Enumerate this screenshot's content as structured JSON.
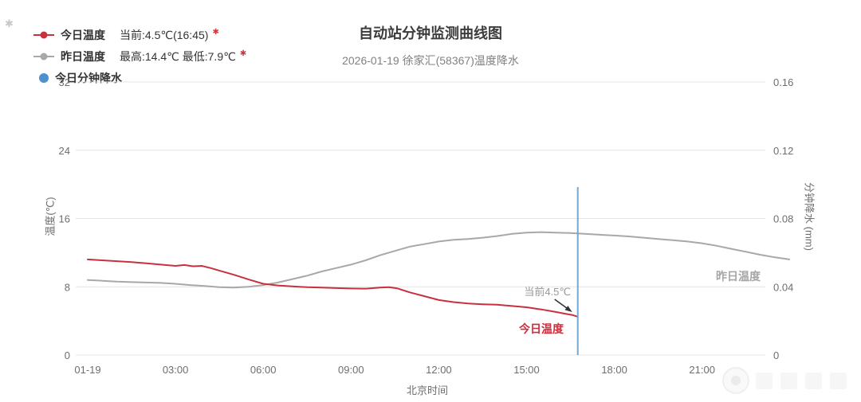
{
  "header": {
    "title": "自动站分钟监测曲线图",
    "subtitle": "2026-01-19 徐家汇(58367)温度降水"
  },
  "legend": {
    "items": [
      {
        "label": "今日温度",
        "detail": "当前:4.5℃(16:45)",
        "marker_color": "#c9303e",
        "footnote": "✱"
      },
      {
        "label": "昨日温度",
        "detail": "最高:14.4℃ 最低:7.9℃",
        "marker_color": "#a8a8a8",
        "footnote": "✱"
      },
      {
        "label": "今日分钟降水",
        "detail": "",
        "marker_color": "#4d8fd1",
        "footnote": ""
      }
    ]
  },
  "chart_data": {
    "type": "line",
    "title": "自动站分钟监测曲线图",
    "subtitle": "2026-01-19 徐家汇(58367)温度降水",
    "x_axis": {
      "name": "北京时间",
      "tick_labels": [
        "01-19",
        "03:00",
        "06:00",
        "09:00",
        "12:00",
        "15:00",
        "18:00",
        "21:00"
      ],
      "tick_hours": [
        0,
        3,
        6,
        9,
        12,
        15,
        18,
        21
      ],
      "range_hours": [
        0,
        24
      ]
    },
    "y_axis_left": {
      "name": "温度(℃)",
      "ticks": [
        0,
        8,
        16,
        24,
        32
      ],
      "range": [
        0,
        32
      ]
    },
    "y_axis_right": {
      "name": "分钟降水 (mm)",
      "ticks": [
        "0",
        "0.04",
        "0.08",
        "0.12",
        "0.16"
      ],
      "range": [
        0,
        0.16
      ]
    },
    "grid": true,
    "legend_position": "top-left",
    "series": [
      {
        "name": "今日温度",
        "color": "#c9303e",
        "unit": "℃",
        "points": [
          [
            0,
            11.2
          ],
          [
            0.5,
            11.1
          ],
          [
            1,
            11.0
          ],
          [
            1.5,
            10.9
          ],
          [
            2,
            10.75
          ],
          [
            2.5,
            10.6
          ],
          [
            3,
            10.45
          ],
          [
            3.3,
            10.55
          ],
          [
            3.6,
            10.4
          ],
          [
            3.9,
            10.45
          ],
          [
            4.2,
            10.2
          ],
          [
            4.5,
            9.9
          ],
          [
            5,
            9.4
          ],
          [
            5.5,
            8.85
          ],
          [
            6,
            8.35
          ],
          [
            6.5,
            8.15
          ],
          [
            7,
            8.05
          ],
          [
            7.5,
            7.95
          ],
          [
            8,
            7.9
          ],
          [
            8.5,
            7.85
          ],
          [
            9,
            7.8
          ],
          [
            9.5,
            7.78
          ],
          [
            10,
            7.9
          ],
          [
            10.3,
            7.95
          ],
          [
            10.6,
            7.8
          ],
          [
            11,
            7.35
          ],
          [
            11.5,
            6.9
          ],
          [
            12,
            6.45
          ],
          [
            12.5,
            6.2
          ],
          [
            13,
            6.05
          ],
          [
            13.5,
            5.95
          ],
          [
            14,
            5.9
          ],
          [
            14.5,
            5.75
          ],
          [
            15,
            5.6
          ],
          [
            15.5,
            5.35
          ],
          [
            16,
            5.05
          ],
          [
            16.3,
            4.85
          ],
          [
            16.55,
            4.7
          ],
          [
            16.75,
            4.5
          ]
        ]
      },
      {
        "name": "昨日温度",
        "color": "#a8a8a8",
        "unit": "℃",
        "points": [
          [
            0,
            8.8
          ],
          [
            0.5,
            8.7
          ],
          [
            1,
            8.6
          ],
          [
            1.5,
            8.55
          ],
          [
            2,
            8.5
          ],
          [
            2.5,
            8.45
          ],
          [
            3,
            8.35
          ],
          [
            3.5,
            8.2
          ],
          [
            4,
            8.1
          ],
          [
            4.5,
            7.95
          ],
          [
            5,
            7.9
          ],
          [
            5.5,
            8.0
          ],
          [
            6,
            8.2
          ],
          [
            6.5,
            8.5
          ],
          [
            7,
            8.9
          ],
          [
            7.5,
            9.3
          ],
          [
            8,
            9.8
          ],
          [
            8.5,
            10.2
          ],
          [
            9,
            10.6
          ],
          [
            9.5,
            11.1
          ],
          [
            10,
            11.7
          ],
          [
            10.5,
            12.2
          ],
          [
            11,
            12.7
          ],
          [
            11.5,
            13.0
          ],
          [
            12,
            13.3
          ],
          [
            12.5,
            13.5
          ],
          [
            13,
            13.6
          ],
          [
            13.5,
            13.75
          ],
          [
            14,
            13.95
          ],
          [
            14.5,
            14.2
          ],
          [
            15,
            14.35
          ],
          [
            15.5,
            14.4
          ],
          [
            16,
            14.35
          ],
          [
            16.5,
            14.3
          ],
          [
            17,
            14.2
          ],
          [
            17.5,
            14.1
          ],
          [
            18,
            14.0
          ],
          [
            18.5,
            13.9
          ],
          [
            19,
            13.75
          ],
          [
            19.5,
            13.6
          ],
          [
            20,
            13.45
          ],
          [
            20.5,
            13.3
          ],
          [
            21,
            13.1
          ],
          [
            21.5,
            12.8
          ],
          [
            22,
            12.45
          ],
          [
            22.5,
            12.1
          ],
          [
            23,
            11.75
          ],
          [
            23.5,
            11.45
          ],
          [
            23.98,
            11.2
          ]
        ]
      },
      {
        "name": "今日分钟降水",
        "color": "#4d8fd1",
        "unit": "mm",
        "points": []
      }
    ],
    "current_marker": {
      "time_label": "16:45",
      "time_hours": 16.75,
      "value_label": "当前4.5℃",
      "line_color": "#79a6cf"
    },
    "series_end_labels": [
      {
        "text": "今日温度",
        "color": "#c9303e"
      },
      {
        "text": "昨日温度",
        "color": "#a6a6a6"
      }
    ]
  }
}
